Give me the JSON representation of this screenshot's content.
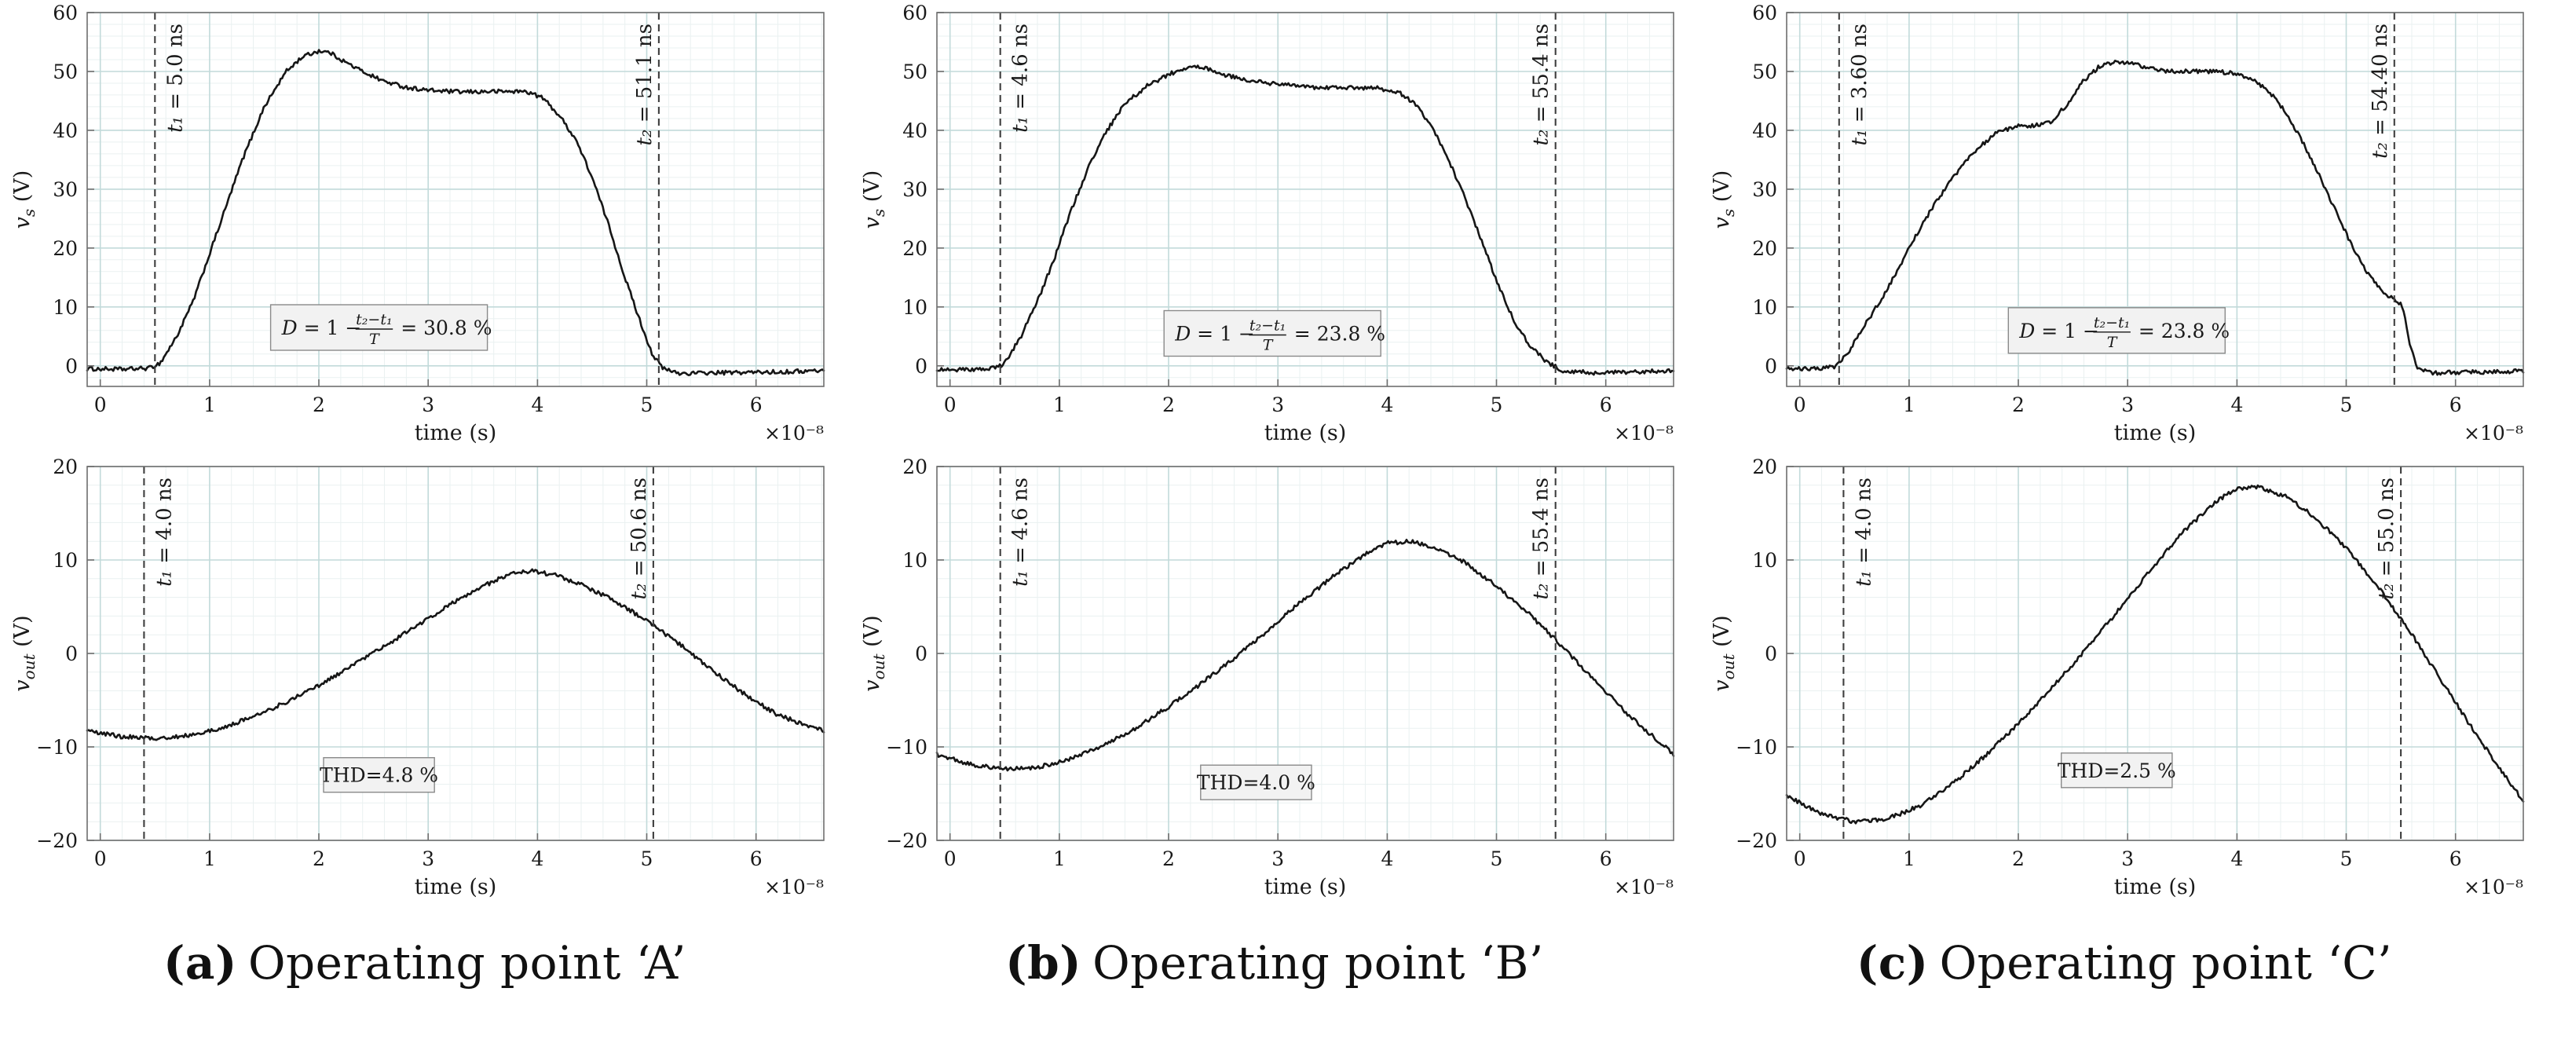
{
  "style": {
    "curve": "#161616",
    "grid": "#c2dada",
    "minor_grid": "#eaf1f1",
    "axis": "#6e6e6e",
    "dashed": "#3f3f3f",
    "text_color": "#1a1a1a",
    "annotation_bg": "#f2f2f2",
    "annotation_border": "#8a8a8a",
    "background": "#ffffff"
  },
  "captions": [
    {
      "label": "(a)",
      "text": "Operating point ‘A’"
    },
    {
      "label": "(b)",
      "text": "Operating point ‘B’"
    },
    {
      "label": "(c)",
      "text": "Operating point ‘C’"
    }
  ],
  "chart_data": [
    {
      "type": "line",
      "position": "top-a",
      "xlabel": "time (s)",
      "x_exponent": "×10⁻⁸",
      "ylabel": {
        "var": "v",
        "sub": "s",
        "unit": " (V)"
      },
      "xlim": [
        -0.12,
        6.62
      ],
      "ylim": [
        -3.5,
        60
      ],
      "xticks": [
        0,
        1,
        2,
        3,
        4,
        5,
        6
      ],
      "yticks": [
        0,
        10,
        20,
        30,
        40,
        50,
        60
      ],
      "x_minor_step": 0.2,
      "y_minor_step": 2,
      "noise": 0.35,
      "markers": [
        {
          "x": 0.5,
          "var": "t₁",
          "rest": " = 5.0 ns",
          "side": "right"
        },
        {
          "x": 5.11,
          "var": "t₂",
          "rest": " = 51.1 ns",
          "side": "left"
        }
      ],
      "annotation": {
        "kind": "equation",
        "pre": "D = 1 −",
        "num": "t₂−t₁",
        "den": "T",
        "post": "= 30.8 %",
        "x": 2.55,
        "y": 6.5
      },
      "series": [
        {
          "name": "v_s",
          "points": [
            [
              -0.12,
              -0.5
            ],
            [
              0.2,
              -0.6
            ],
            [
              0.45,
              -0.4
            ],
            [
              0.55,
              0.5
            ],
            [
              0.7,
              5
            ],
            [
              0.85,
              11
            ],
            [
              1.0,
              19
            ],
            [
              1.15,
              27
            ],
            [
              1.3,
              35
            ],
            [
              1.5,
              44
            ],
            [
              1.7,
              50
            ],
            [
              1.85,
              52.5
            ],
            [
              2.0,
              53.5
            ],
            [
              2.1,
              53.2
            ],
            [
              2.25,
              51.5
            ],
            [
              2.4,
              50
            ],
            [
              2.6,
              48.3
            ],
            [
              2.8,
              47.3
            ],
            [
              3.0,
              46.8
            ],
            [
              3.3,
              46.5
            ],
            [
              3.6,
              46.6
            ],
            [
              3.9,
              46.6
            ],
            [
              4.05,
              45.5
            ],
            [
              4.2,
              42.5
            ],
            [
              4.35,
              38.5
            ],
            [
              4.5,
              32
            ],
            [
              4.65,
              24
            ],
            [
              4.8,
              15
            ],
            [
              4.95,
              7
            ],
            [
              5.05,
              2
            ],
            [
              5.15,
              -0.5
            ],
            [
              5.3,
              -1.3
            ],
            [
              5.6,
              -1.2
            ],
            [
              6.0,
              -1.1
            ],
            [
              6.3,
              -1.0
            ],
            [
              6.62,
              -0.8
            ]
          ]
        }
      ]
    },
    {
      "type": "line",
      "position": "top-b",
      "xlabel": "time (s)",
      "x_exponent": "×10⁻⁸",
      "ylabel": {
        "var": "v",
        "sub": "s",
        "unit": " (V)"
      },
      "xlim": [
        -0.12,
        6.62
      ],
      "ylim": [
        -3.5,
        60
      ],
      "xticks": [
        0,
        1,
        2,
        3,
        4,
        5,
        6
      ],
      "yticks": [
        0,
        10,
        20,
        30,
        40,
        50,
        60
      ],
      "x_minor_step": 0.2,
      "y_minor_step": 2,
      "noise": 0.35,
      "markers": [
        {
          "x": 0.46,
          "var": "t₁",
          "rest": " = 4.6 ns",
          "side": "right"
        },
        {
          "x": 5.54,
          "var": "t₂",
          "rest": " = 55.4 ns",
          "side": "left"
        }
      ],
      "annotation": {
        "kind": "equation",
        "pre": "D = 1 −",
        "num": "t₂−t₁",
        "den": "T",
        "post": "= 23.8 %",
        "x": 2.95,
        "y": 5.5
      },
      "series": [
        {
          "name": "v_s",
          "points": [
            [
              -0.12,
              -0.6
            ],
            [
              0.2,
              -0.7
            ],
            [
              0.42,
              -0.4
            ],
            [
              0.5,
              0.5
            ],
            [
              0.65,
              5
            ],
            [
              0.8,
              11
            ],
            [
              0.95,
              18
            ],
            [
              1.1,
              26
            ],
            [
              1.25,
              33
            ],
            [
              1.4,
              39
            ],
            [
              1.6,
              44.5
            ],
            [
              1.8,
              47.5
            ],
            [
              2.0,
              49.5
            ],
            [
              2.2,
              50.8
            ],
            [
              2.35,
              50.5
            ],
            [
              2.5,
              49.5
            ],
            [
              2.7,
              48.5
            ],
            [
              3.0,
              47.8
            ],
            [
              3.3,
              47.3
            ],
            [
              3.6,
              47.2
            ],
            [
              3.9,
              47.2
            ],
            [
              4.1,
              46.5
            ],
            [
              4.25,
              44.5
            ],
            [
              4.4,
              41
            ],
            [
              4.55,
              35.5
            ],
            [
              4.7,
              29
            ],
            [
              4.85,
              22
            ],
            [
              5.0,
              14.5
            ],
            [
              5.15,
              8
            ],
            [
              5.3,
              3.5
            ],
            [
              5.45,
              0.8
            ],
            [
              5.6,
              -0.8
            ],
            [
              5.9,
              -1.2
            ],
            [
              6.2,
              -1.1
            ],
            [
              6.62,
              -0.8
            ]
          ]
        }
      ]
    },
    {
      "type": "line",
      "position": "top-c",
      "xlabel": "time (s)",
      "x_exponent": "×10⁻⁸",
      "ylabel": {
        "var": "v",
        "sub": "s",
        "unit": " (V)"
      },
      "xlim": [
        -0.12,
        6.62
      ],
      "ylim": [
        -3.5,
        60
      ],
      "xticks": [
        0,
        1,
        2,
        3,
        4,
        5,
        6
      ],
      "yticks": [
        0,
        10,
        20,
        30,
        40,
        50,
        60
      ],
      "x_minor_step": 0.2,
      "y_minor_step": 2,
      "noise": 0.35,
      "markers": [
        {
          "x": 0.36,
          "var": "t₁",
          "rest": " = 3.60 ns",
          "side": "right"
        },
        {
          "x": 5.44,
          "var": "t₂",
          "rest": " = 54.40 ns",
          "side": "left"
        }
      ],
      "annotation": {
        "kind": "equation",
        "pre": "D = 1 −",
        "num": "t₂−t₁",
        "den": "T",
        "post": "= 23.8 %",
        "x": 2.9,
        "y": 6.0
      },
      "series": [
        {
          "name": "v_s",
          "points": [
            [
              -0.12,
              -0.5
            ],
            [
              0.15,
              -0.5
            ],
            [
              0.32,
              -0.2
            ],
            [
              0.45,
              2.5
            ],
            [
              0.6,
              7
            ],
            [
              0.8,
              13
            ],
            [
              1.0,
              20
            ],
            [
              1.2,
              26.5
            ],
            [
              1.4,
              32
            ],
            [
              1.6,
              36.5
            ],
            [
              1.8,
              39.5
            ],
            [
              2.0,
              40.8
            ],
            [
              2.15,
              40.8
            ],
            [
              2.3,
              41.5
            ],
            [
              2.45,
              44.5
            ],
            [
              2.6,
              48.5
            ],
            [
              2.75,
              51
            ],
            [
              2.9,
              51.7
            ],
            [
              3.05,
              51.3
            ],
            [
              3.2,
              50.5
            ],
            [
              3.4,
              50
            ],
            [
              3.7,
              50
            ],
            [
              3.95,
              49.8
            ],
            [
              4.15,
              48.5
            ],
            [
              4.3,
              46.5
            ],
            [
              4.45,
              43
            ],
            [
              4.6,
              38
            ],
            [
              4.75,
              32.5
            ],
            [
              4.9,
              26.5
            ],
            [
              5.05,
              20.5
            ],
            [
              5.2,
              15.5
            ],
            [
              5.35,
              12.3
            ],
            [
              5.45,
              11.3
            ],
            [
              5.52,
              10
            ],
            [
              5.58,
              4
            ],
            [
              5.65,
              -0.5
            ],
            [
              5.8,
              -1.2
            ],
            [
              6.1,
              -1.1
            ],
            [
              6.62,
              -0.9
            ]
          ]
        }
      ]
    },
    {
      "type": "line",
      "position": "bottom-a",
      "xlabel": "time (s)",
      "x_exponent": "×10⁻⁸",
      "ylabel": {
        "var": "v",
        "sub": "out",
        "unit": " (V)"
      },
      "xlim": [
        -0.12,
        6.62
      ],
      "ylim": [
        -20,
        20
      ],
      "xticks": [
        0,
        1,
        2,
        3,
        4,
        5,
        6
      ],
      "yticks": [
        -20,
        -10,
        0,
        10,
        20
      ],
      "x_minor_step": 0.2,
      "y_minor_step": 2,
      "noise": 0.22,
      "markers": [
        {
          "x": 0.4,
          "var": "t₁",
          "rest": " = 4.0 ns",
          "side": "right"
        },
        {
          "x": 5.06,
          "var": "t₂",
          "rest": " = 50.6 ns",
          "side": "left"
        }
      ],
      "annotation": {
        "kind": "text",
        "text": "THD=4.8 %",
        "x": 2.55,
        "y": -13
      },
      "series": [
        {
          "name": "v_out",
          "points": [
            [
              -0.12,
              -8.3
            ],
            [
              0.2,
              -8.9
            ],
            [
              0.5,
              -9.1
            ],
            [
              0.8,
              -8.8
            ],
            [
              1.1,
              -8
            ],
            [
              1.4,
              -6.8
            ],
            [
              1.7,
              -5.2
            ],
            [
              2.0,
              -3.4
            ],
            [
              2.3,
              -1.4
            ],
            [
              2.6,
              0.8
            ],
            [
              2.9,
              3
            ],
            [
              3.2,
              5.2
            ],
            [
              3.5,
              7.2
            ],
            [
              3.75,
              8.5
            ],
            [
              3.95,
              8.8
            ],
            [
              4.15,
              8.4
            ],
            [
              4.4,
              7.4
            ],
            [
              4.7,
              5.7
            ],
            [
              5.0,
              3.5
            ],
            [
              5.3,
              1
            ],
            [
              5.6,
              -1.8
            ],
            [
              5.9,
              -4.4
            ],
            [
              6.2,
              -6.6
            ],
            [
              6.62,
              -8.3
            ]
          ]
        }
      ]
    },
    {
      "type": "line",
      "position": "bottom-b",
      "xlabel": "time (s)",
      "x_exponent": "×10⁻⁸",
      "ylabel": {
        "var": "v",
        "sub": "out",
        "unit": " (V)"
      },
      "xlim": [
        -0.12,
        6.62
      ],
      "ylim": [
        -20,
        20
      ],
      "xticks": [
        0,
        1,
        2,
        3,
        4,
        5,
        6
      ],
      "yticks": [
        -20,
        -10,
        0,
        10,
        20
      ],
      "x_minor_step": 0.2,
      "y_minor_step": 2,
      "noise": 0.22,
      "markers": [
        {
          "x": 0.46,
          "var": "t₁",
          "rest": " = 4.6 ns",
          "side": "right"
        },
        {
          "x": 5.54,
          "var": "t₂",
          "rest": " = 55.4 ns",
          "side": "left"
        }
      ],
      "annotation": {
        "kind": "text",
        "text": "THD=4.0 %",
        "x": 2.8,
        "y": -13.8
      },
      "series": [
        {
          "name": "v_out",
          "points": [
            [
              -0.12,
              -10.8
            ],
            [
              0.2,
              -11.9
            ],
            [
              0.5,
              -12.4
            ],
            [
              0.8,
              -12.2
            ],
            [
              1.1,
              -11.3
            ],
            [
              1.4,
              -9.9
            ],
            [
              1.7,
              -8
            ],
            [
              2.0,
              -5.7
            ],
            [
              2.3,
              -3.2
            ],
            [
              2.6,
              -0.5
            ],
            [
              2.9,
              2.4
            ],
            [
              3.2,
              5.4
            ],
            [
              3.5,
              8.2
            ],
            [
              3.8,
              10.6
            ],
            [
              4.0,
              11.8
            ],
            [
              4.2,
              12
            ],
            [
              4.45,
              11.3
            ],
            [
              4.7,
              9.8
            ],
            [
              5.0,
              7.2
            ],
            [
              5.3,
              4.2
            ],
            [
              5.6,
              0.8
            ],
            [
              5.9,
              -2.9
            ],
            [
              6.2,
              -6.5
            ],
            [
              6.62,
              -10.8
            ]
          ]
        }
      ]
    },
    {
      "type": "line",
      "position": "bottom-c",
      "xlabel": "time (s)",
      "x_exponent": "×10⁻⁸",
      "ylabel": {
        "var": "v",
        "sub": "out",
        "unit": " (V)"
      },
      "xlim": [
        -0.12,
        6.62
      ],
      "ylim": [
        -20,
        20
      ],
      "xticks": [
        0,
        1,
        2,
        3,
        4,
        5,
        6
      ],
      "yticks": [
        -20,
        -10,
        0,
        10,
        20
      ],
      "x_minor_step": 0.2,
      "y_minor_step": 2,
      "noise": 0.22,
      "markers": [
        {
          "x": 0.4,
          "var": "t₁",
          "rest": " = 4.0 ns",
          "side": "right"
        },
        {
          "x": 5.5,
          "var": "t₂",
          "rest": " = 55.0 ns",
          "side": "left"
        }
      ],
      "annotation": {
        "kind": "text",
        "text": "THD=2.5 %",
        "x": 2.9,
        "y": -12.5
      },
      "series": [
        {
          "name": "v_out",
          "points": [
            [
              -0.12,
              -15.2
            ],
            [
              0.2,
              -17.2
            ],
            [
              0.5,
              -18
            ],
            [
              0.8,
              -17.7
            ],
            [
              1.1,
              -16.3
            ],
            [
              1.4,
              -13.9
            ],
            [
              1.7,
              -10.9
            ],
            [
              2.0,
              -7.5
            ],
            [
              2.3,
              -3.8
            ],
            [
              2.6,
              0.2
            ],
            [
              2.9,
              4.4
            ],
            [
              3.2,
              8.8
            ],
            [
              3.5,
              12.9
            ],
            [
              3.8,
              16.2
            ],
            [
              4.0,
              17.7
            ],
            [
              4.2,
              17.8
            ],
            [
              4.45,
              16.8
            ],
            [
              4.7,
              14.7
            ],
            [
              5.0,
              11.3
            ],
            [
              5.3,
              7
            ],
            [
              5.6,
              2
            ],
            [
              5.9,
              -3.4
            ],
            [
              6.2,
              -8.9
            ],
            [
              6.45,
              -13
            ],
            [
              6.62,
              -15.8
            ]
          ]
        }
      ]
    }
  ]
}
